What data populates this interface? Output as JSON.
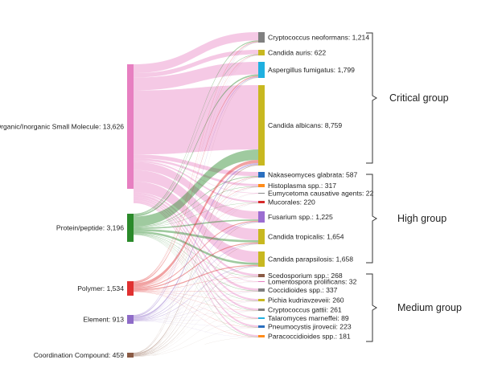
{
  "chart_data": {
    "type": "sankey",
    "sources": [
      {
        "name": "Organic/Inorganic Small Molecule",
        "value": 13626,
        "label": "Organic/Inorganic Small Molecule: 13,626",
        "color": "#e77fc1"
      },
      {
        "name": "Protein/peptide",
        "value": 3196,
        "label": "Protein/peptide: 3,196",
        "color": "#2a8a2a"
      },
      {
        "name": "Polymer",
        "value": 1534,
        "label": "Polymer: 1,534",
        "color": "#e03030"
      },
      {
        "name": "Element",
        "value": 913,
        "label": "Element: 913",
        "color": "#8e6bc8"
      },
      {
        "name": "Coordination Compound",
        "value": 459,
        "label": "Coordination Compound: 459",
        "color": "#8a5a44"
      }
    ],
    "targets": [
      {
        "name": "Cryptococcus neoformans",
        "value": 1214,
        "label": "Cryptococcus neoformans: 1,214",
        "color": "#808080"
      },
      {
        "name": "Candida auris",
        "value": 622,
        "label": "Candida auris: 622",
        "color": "#c8b820"
      },
      {
        "name": "Aspergillus fumigatus",
        "value": 1799,
        "label": "Aspergillus fumigatus: 1,799",
        "color": "#1fb0e0"
      },
      {
        "name": "Candida albicans",
        "value": 8759,
        "label": "Candida albicans: 8,759",
        "color": "#c8b820"
      },
      {
        "name": "Nakaseomyces glabrata",
        "value": 587,
        "label": "Nakaseomyces glabrata: 587",
        "color": "#2a6fbf"
      },
      {
        "name": "Histoplasma spp.",
        "value": 317,
        "label": "Histoplasma spp.: 317",
        "color": "#ff8c1a"
      },
      {
        "name": "Eumycetoma causative agents",
        "value": 22,
        "label": "Eumycetoma causative agents: 22",
        "color": "#888888"
      },
      {
        "name": "Mucorales",
        "value": 220,
        "label": "Mucorales: 220",
        "color": "#d62a2a"
      },
      {
        "name": "Fusarium spp.",
        "value": 1225,
        "label": "Fusarium spp.: 1,225",
        "color": "#9b6dd1"
      },
      {
        "name": "Candida tropicalis",
        "value": 1654,
        "label": "Candida tropicalis: 1,654",
        "color": "#c8b820"
      },
      {
        "name": "Candida parapsilosis",
        "value": 1658,
        "label": "Candida parapsilosis: 1,658",
        "color": "#c8b820"
      },
      {
        "name": "Scedosporium spp.",
        "value": 268,
        "label": "Scedosporium spp.: 268",
        "color": "#8a5a44"
      },
      {
        "name": "Lomentospora prolificans",
        "value": 32,
        "label": "Lomentospora prolificans: 32",
        "color": "#e77fc1"
      },
      {
        "name": "Coccidioides spp.",
        "value": 337,
        "label": "Coccidioides spp.: 337",
        "color": "#808080"
      },
      {
        "name": "Pichia kudriavzeveii",
        "value": 260,
        "label": "Pichia kudriavzeveii: 260",
        "color": "#c8b820"
      },
      {
        "name": "Cryptococcus gattii",
        "value": 261,
        "label": "Cryptococcus gattii: 261",
        "color": "#808080"
      },
      {
        "name": "Talaromyces marneffei",
        "value": 89,
        "label": "Talaromyces marneffei: 89",
        "color": "#1fb0e0"
      },
      {
        "name": "Pneumocystis jirovecii",
        "value": 223,
        "label": "Pneumocystis jirovecii: 223",
        "color": "#2a6fbf"
      },
      {
        "name": "Paracoccidioides spp.",
        "value": 181,
        "label": "Paracoccidioides spp.: 181",
        "color": "#ff8c1a"
      }
    ],
    "groups": [
      {
        "label": "Critical group",
        "first": 0,
        "last": 3
      },
      {
        "label": "High group",
        "first": 4,
        "last": 10
      },
      {
        "label": "Medium group",
        "first": 11,
        "last": 18
      }
    ]
  }
}
